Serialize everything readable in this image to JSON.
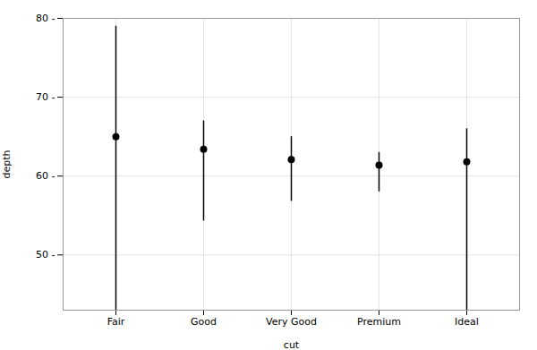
{
  "chart_data": {
    "type": "range",
    "categories": [
      "Fair",
      "Good",
      "Very Good",
      "Premium",
      "Ideal"
    ],
    "values": [
      65.0,
      63.4,
      62.1,
      61.4,
      61.8
    ],
    "mins": [
      43.0,
      54.3,
      56.8,
      58.0,
      43.0
    ],
    "maxs": [
      79.0,
      67.0,
      65.0,
      63.0,
      66.0
    ],
    "xlabel": "cut",
    "ylabel": "depth",
    "ylim": [
      43.0,
      80.0
    ],
    "yticks": [
      {
        "value": 50,
        "label": "50 -"
      },
      {
        "value": 60,
        "label": "60 -"
      },
      {
        "value": 70,
        "label": "70 -"
      },
      {
        "value": 80,
        "label": "80 -"
      }
    ],
    "color": "#000000",
    "grid": true
  }
}
